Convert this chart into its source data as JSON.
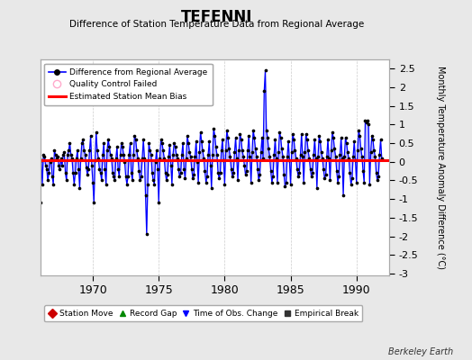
{
  "title": "TEFENNI",
  "subtitle": "Difference of Station Temperature Data from Regional Average",
  "ylabel_right": "Monthly Temperature Anomaly Difference (°C)",
  "bias": 0.05,
  "ylim": [
    -3.05,
    2.75
  ],
  "xlim": [
    1966.0,
    1992.5
  ],
  "xticks": [
    1970,
    1975,
    1980,
    1985,
    1990
  ],
  "yticks": [
    -3,
    -2.5,
    -2,
    -1.5,
    -1,
    -0.5,
    0,
    0.5,
    1,
    1.5,
    2,
    2.5
  ],
  "ytick_labels": [
    "-3",
    "-2.5",
    "-2",
    "-1.5",
    "-1",
    "-0.5",
    "0",
    "0.5",
    "1",
    "1.5",
    "2",
    "2.5"
  ],
  "line_color": "#0000ff",
  "fill_color": "#aaaaff",
  "marker_color": "#000000",
  "bias_color": "#ff0000",
  "background_color": "#e8e8e8",
  "plot_bg_color": "#ffffff",
  "grid_color": "#cccccc",
  "watermark": "Berkeley Earth",
  "data": [
    [
      1966.0,
      -1.1
    ],
    [
      1966.083,
      0.05
    ],
    [
      1966.167,
      -0.6
    ],
    [
      1966.25,
      0.2
    ],
    [
      1966.333,
      0.15
    ],
    [
      1966.417,
      -0.1
    ],
    [
      1966.5,
      -0.2
    ],
    [
      1966.583,
      -0.5
    ],
    [
      1966.667,
      -0.3
    ],
    [
      1966.75,
      0.0
    ],
    [
      1966.833,
      0.1
    ],
    [
      1966.917,
      -0.4
    ],
    [
      1967.0,
      -0.6
    ],
    [
      1967.083,
      0.3
    ],
    [
      1967.167,
      0.2
    ],
    [
      1967.25,
      0.1
    ],
    [
      1967.333,
      0.15
    ],
    [
      1967.417,
      -0.1
    ],
    [
      1967.5,
      -0.2
    ],
    [
      1967.583,
      0.1
    ],
    [
      1967.667,
      -0.1
    ],
    [
      1967.75,
      0.2
    ],
    [
      1967.833,
      0.25
    ],
    [
      1967.917,
      -0.3
    ],
    [
      1968.0,
      -0.5
    ],
    [
      1968.083,
      0.2
    ],
    [
      1968.167,
      0.3
    ],
    [
      1968.25,
      0.5
    ],
    [
      1968.333,
      0.2
    ],
    [
      1968.417,
      0.1
    ],
    [
      1968.5,
      -0.3
    ],
    [
      1968.583,
      -0.6
    ],
    [
      1968.667,
      -0.3
    ],
    [
      1968.75,
      0.1
    ],
    [
      1968.833,
      0.3
    ],
    [
      1968.917,
      -0.2
    ],
    [
      1969.0,
      -0.7
    ],
    [
      1969.083,
      0.1
    ],
    [
      1969.167,
      0.5
    ],
    [
      1969.25,
      0.6
    ],
    [
      1969.333,
      0.3
    ],
    [
      1969.417,
      0.2
    ],
    [
      1969.5,
      -0.15
    ],
    [
      1969.583,
      -0.35
    ],
    [
      1969.667,
      -0.2
    ],
    [
      1969.75,
      0.3
    ],
    [
      1969.833,
      0.7
    ],
    [
      1969.917,
      -0.1
    ],
    [
      1970.0,
      -0.55
    ],
    [
      1970.083,
      -1.1
    ],
    [
      1970.167,
      0.05
    ],
    [
      1970.25,
      0.8
    ],
    [
      1970.333,
      0.3
    ],
    [
      1970.417,
      0.1
    ],
    [
      1970.5,
      -0.2
    ],
    [
      1970.583,
      -0.3
    ],
    [
      1970.667,
      -0.5
    ],
    [
      1970.75,
      0.2
    ],
    [
      1970.833,
      0.5
    ],
    [
      1970.917,
      -0.2
    ],
    [
      1971.0,
      -0.6
    ],
    [
      1971.083,
      0.3
    ],
    [
      1971.167,
      0.6
    ],
    [
      1971.25,
      0.4
    ],
    [
      1971.333,
      0.2
    ],
    [
      1971.417,
      0.1
    ],
    [
      1971.5,
      -0.3
    ],
    [
      1971.583,
      -0.4
    ],
    [
      1971.667,
      -0.5
    ],
    [
      1971.75,
      0.1
    ],
    [
      1971.833,
      0.4
    ],
    [
      1971.917,
      -0.2
    ],
    [
      1972.0,
      -0.4
    ],
    [
      1972.083,
      0.2
    ],
    [
      1972.167,
      0.5
    ],
    [
      1972.25,
      0.4
    ],
    [
      1972.333,
      0.2
    ],
    [
      1972.417,
      0.0
    ],
    [
      1972.5,
      -0.4
    ],
    [
      1972.583,
      -0.6
    ],
    [
      1972.667,
      -0.4
    ],
    [
      1972.75,
      0.2
    ],
    [
      1972.833,
      0.5
    ],
    [
      1972.917,
      -0.3
    ],
    [
      1973.0,
      -0.5
    ],
    [
      1973.083,
      0.2
    ],
    [
      1973.167,
      0.7
    ],
    [
      1973.25,
      0.6
    ],
    [
      1973.333,
      0.3
    ],
    [
      1973.417,
      0.1
    ],
    [
      1973.5,
      -0.25
    ],
    [
      1973.583,
      -0.5
    ],
    [
      1973.667,
      -0.4
    ],
    [
      1973.75,
      0.1
    ],
    [
      1973.833,
      0.6
    ],
    [
      1973.917,
      0.1
    ],
    [
      1974.0,
      -0.9
    ],
    [
      1974.083,
      -1.95
    ],
    [
      1974.167,
      -0.6
    ],
    [
      1974.25,
      0.5
    ],
    [
      1974.333,
      0.3
    ],
    [
      1974.417,
      0.2
    ],
    [
      1974.5,
      -0.3
    ],
    [
      1974.583,
      -0.5
    ],
    [
      1974.667,
      -0.6
    ],
    [
      1974.75,
      0.0
    ],
    [
      1974.833,
      0.3
    ],
    [
      1974.917,
      -0.2
    ],
    [
      1975.0,
      -1.1
    ],
    [
      1975.083,
      0.1
    ],
    [
      1975.167,
      0.6
    ],
    [
      1975.25,
      0.5
    ],
    [
      1975.333,
      0.3
    ],
    [
      1975.417,
      0.1
    ],
    [
      1975.5,
      -0.3
    ],
    [
      1975.583,
      -0.5
    ],
    [
      1975.667,
      -0.35
    ],
    [
      1975.75,
      0.15
    ],
    [
      1975.833,
      0.45
    ],
    [
      1975.917,
      -0.1
    ],
    [
      1976.0,
      -0.6
    ],
    [
      1976.083,
      0.2
    ],
    [
      1976.167,
      0.5
    ],
    [
      1976.25,
      0.4
    ],
    [
      1976.333,
      0.2
    ],
    [
      1976.417,
      0.1
    ],
    [
      1976.5,
      -0.2
    ],
    [
      1976.583,
      -0.4
    ],
    [
      1976.667,
      -0.3
    ],
    [
      1976.75,
      0.2
    ],
    [
      1976.833,
      0.5
    ],
    [
      1976.917,
      -0.2
    ],
    [
      1977.0,
      -0.45
    ],
    [
      1977.083,
      0.1
    ],
    [
      1977.167,
      0.7
    ],
    [
      1977.25,
      0.5
    ],
    [
      1977.333,
      0.25
    ],
    [
      1977.417,
      0.15
    ],
    [
      1977.5,
      -0.2
    ],
    [
      1977.583,
      -0.45
    ],
    [
      1977.667,
      -0.35
    ],
    [
      1977.75,
      0.15
    ],
    [
      1977.833,
      0.55
    ],
    [
      1977.917,
      0.0
    ],
    [
      1978.0,
      -0.55
    ],
    [
      1978.083,
      0.25
    ],
    [
      1978.167,
      0.8
    ],
    [
      1978.25,
      0.55
    ],
    [
      1978.333,
      0.3
    ],
    [
      1978.417,
      0.1
    ],
    [
      1978.5,
      -0.25
    ],
    [
      1978.583,
      -0.55
    ],
    [
      1978.667,
      -0.4
    ],
    [
      1978.75,
      0.2
    ],
    [
      1978.833,
      0.55
    ],
    [
      1978.917,
      -0.1
    ],
    [
      1979.0,
      -0.7
    ],
    [
      1979.083,
      0.2
    ],
    [
      1979.167,
      0.9
    ],
    [
      1979.25,
      0.7
    ],
    [
      1979.333,
      0.4
    ],
    [
      1979.417,
      0.2
    ],
    [
      1979.5,
      -0.3
    ],
    [
      1979.583,
      -0.45
    ],
    [
      1979.667,
      -0.3
    ],
    [
      1979.75,
      0.3
    ],
    [
      1979.833,
      0.6
    ],
    [
      1979.917,
      0.05
    ],
    [
      1980.0,
      -0.6
    ],
    [
      1980.083,
      0.3
    ],
    [
      1980.167,
      0.85
    ],
    [
      1980.25,
      0.65
    ],
    [
      1980.333,
      0.35
    ],
    [
      1980.417,
      0.15
    ],
    [
      1980.5,
      -0.2
    ],
    [
      1980.583,
      -0.4
    ],
    [
      1980.667,
      -0.3
    ],
    [
      1980.75,
      0.25
    ],
    [
      1980.833,
      0.65
    ],
    [
      1980.917,
      0.1
    ],
    [
      1981.0,
      -0.5
    ],
    [
      1981.083,
      0.3
    ],
    [
      1981.167,
      0.75
    ],
    [
      1981.25,
      0.6
    ],
    [
      1981.333,
      0.3
    ],
    [
      1981.417,
      0.15
    ],
    [
      1981.5,
      -0.1
    ],
    [
      1981.583,
      -0.35
    ],
    [
      1981.667,
      -0.25
    ],
    [
      1981.75,
      0.3
    ],
    [
      1981.833,
      0.7
    ],
    [
      1981.917,
      0.15
    ],
    [
      1982.0,
      -0.55
    ],
    [
      1982.083,
      0.25
    ],
    [
      1982.167,
      0.85
    ],
    [
      1982.25,
      0.65
    ],
    [
      1982.333,
      0.35
    ],
    [
      1982.417,
      0.15
    ],
    [
      1982.5,
      -0.2
    ],
    [
      1982.583,
      -0.5
    ],
    [
      1982.667,
      -0.35
    ],
    [
      1982.75,
      0.25
    ],
    [
      1982.833,
      0.65
    ],
    [
      1982.917,
      0.1
    ],
    [
      1983.0,
      1.9
    ],
    [
      1983.083,
      2.45
    ],
    [
      1983.167,
      0.85
    ],
    [
      1983.25,
      0.65
    ],
    [
      1983.333,
      0.35
    ],
    [
      1983.417,
      0.15
    ],
    [
      1983.5,
      -0.25
    ],
    [
      1983.583,
      -0.55
    ],
    [
      1983.667,
      -0.4
    ],
    [
      1983.75,
      0.2
    ],
    [
      1983.833,
      0.6
    ],
    [
      1983.917,
      0.1
    ],
    [
      1984.0,
      -0.55
    ],
    [
      1984.083,
      0.25
    ],
    [
      1984.167,
      0.8
    ],
    [
      1984.25,
      0.65
    ],
    [
      1984.333,
      0.35
    ],
    [
      1984.417,
      0.15
    ],
    [
      1984.5,
      -0.35
    ],
    [
      1984.583,
      -0.65
    ],
    [
      1984.667,
      -0.55
    ],
    [
      1984.75,
      0.15
    ],
    [
      1984.833,
      0.55
    ],
    [
      1984.917,
      0.05
    ],
    [
      1985.0,
      -0.6
    ],
    [
      1985.083,
      0.25
    ],
    [
      1985.167,
      0.75
    ],
    [
      1985.25,
      0.6
    ],
    [
      1985.333,
      0.3
    ],
    [
      1985.417,
      0.1
    ],
    [
      1985.5,
      -0.2
    ],
    [
      1985.583,
      -0.4
    ],
    [
      1985.667,
      -0.3
    ],
    [
      1985.75,
      0.2
    ],
    [
      1985.833,
      0.75
    ],
    [
      1985.917,
      0.15
    ],
    [
      1986.0,
      -0.55
    ],
    [
      1986.083,
      0.25
    ],
    [
      1986.167,
      0.75
    ],
    [
      1986.25,
      0.6
    ],
    [
      1986.333,
      0.3
    ],
    [
      1986.417,
      0.1
    ],
    [
      1986.5,
      -0.2
    ],
    [
      1986.583,
      -0.4
    ],
    [
      1986.667,
      -0.3
    ],
    [
      1986.75,
      0.2
    ],
    [
      1986.833,
      0.6
    ],
    [
      1986.917,
      0.1
    ],
    [
      1987.0,
      -0.7
    ],
    [
      1987.083,
      0.15
    ],
    [
      1987.167,
      0.7
    ],
    [
      1987.25,
      0.55
    ],
    [
      1987.333,
      0.25
    ],
    [
      1987.417,
      0.1
    ],
    [
      1987.5,
      -0.2
    ],
    [
      1987.583,
      -0.45
    ],
    [
      1987.667,
      -0.35
    ],
    [
      1987.75,
      0.15
    ],
    [
      1987.833,
      0.6
    ],
    [
      1987.917,
      0.1
    ],
    [
      1988.0,
      -0.5
    ],
    [
      1988.083,
      0.3
    ],
    [
      1988.167,
      0.8
    ],
    [
      1988.25,
      0.65
    ],
    [
      1988.333,
      0.35
    ],
    [
      1988.417,
      0.15
    ],
    [
      1988.5,
      -0.25
    ],
    [
      1988.583,
      -0.55
    ],
    [
      1988.667,
      -0.4
    ],
    [
      1988.75,
      0.2
    ],
    [
      1988.833,
      0.65
    ],
    [
      1988.917,
      0.1
    ],
    [
      1989.0,
      -0.9
    ],
    [
      1989.083,
      0.15
    ],
    [
      1989.167,
      0.65
    ],
    [
      1989.25,
      0.5
    ],
    [
      1989.333,
      0.25
    ],
    [
      1989.417,
      0.1
    ],
    [
      1989.5,
      -0.3
    ],
    [
      1989.583,
      -0.6
    ],
    [
      1989.667,
      -0.45
    ],
    [
      1989.75,
      0.15
    ],
    [
      1989.833,
      0.55
    ],
    [
      1989.917,
      0.05
    ],
    [
      1990.0,
      -0.55
    ],
    [
      1990.083,
      0.3
    ],
    [
      1990.167,
      0.85
    ],
    [
      1990.25,
      0.7
    ],
    [
      1990.333,
      0.35
    ],
    [
      1990.417,
      0.15
    ],
    [
      1990.5,
      -0.25
    ],
    [
      1990.583,
      -0.55
    ],
    [
      1990.667,
      1.1
    ],
    [
      1990.75,
      1.05
    ],
    [
      1990.833,
      1.1
    ],
    [
      1990.917,
      1.0
    ],
    [
      1991.0,
      -0.6
    ],
    [
      1991.083,
      0.25
    ],
    [
      1991.167,
      0.7
    ],
    [
      1991.25,
      0.6
    ],
    [
      1991.333,
      0.3
    ],
    [
      1991.417,
      0.15
    ],
    [
      1991.5,
      -0.3
    ],
    [
      1991.583,
      -0.5
    ],
    [
      1991.667,
      -0.4
    ],
    [
      1991.75,
      0.2
    ],
    [
      1991.833,
      0.6
    ],
    [
      1991.917,
      0.1
    ]
  ]
}
